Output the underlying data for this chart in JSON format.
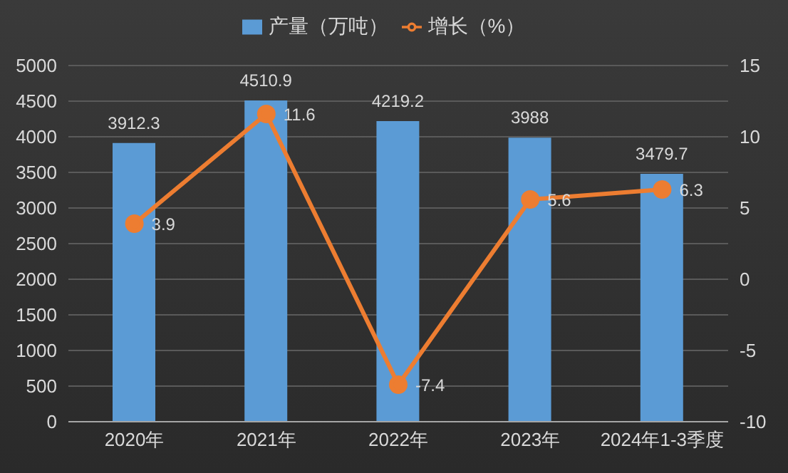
{
  "chart_data": {
    "type": "bar",
    "categories": [
      "2020年",
      "2021年",
      "2022年",
      "2023年",
      "2024年1-3季度"
    ],
    "series": [
      {
        "name": "产量（万吨）",
        "color": "#5b9bd5",
        "values": [
          3912.3,
          4510.9,
          4219.2,
          3988,
          3479.7
        ]
      },
      {
        "name": "增长（%）",
        "type": "line",
        "axis": "y2",
        "color": "#ed7d31",
        "values": [
          3.9,
          11.6,
          -7.4,
          5.6,
          6.3
        ]
      }
    ],
    "ylim": [
      0,
      5000
    ],
    "yticks": [
      0,
      500,
      1000,
      1500,
      2000,
      2500,
      3000,
      3500,
      4000,
      4500,
      5000
    ],
    "y2lim": [
      -10,
      15
    ],
    "y2ticks": [
      -10,
      -5,
      0,
      5,
      10,
      15
    ],
    "data_labels": true,
    "legend": "top",
    "grid": "y",
    "marker": "circle",
    "line_style": "solid"
  }
}
